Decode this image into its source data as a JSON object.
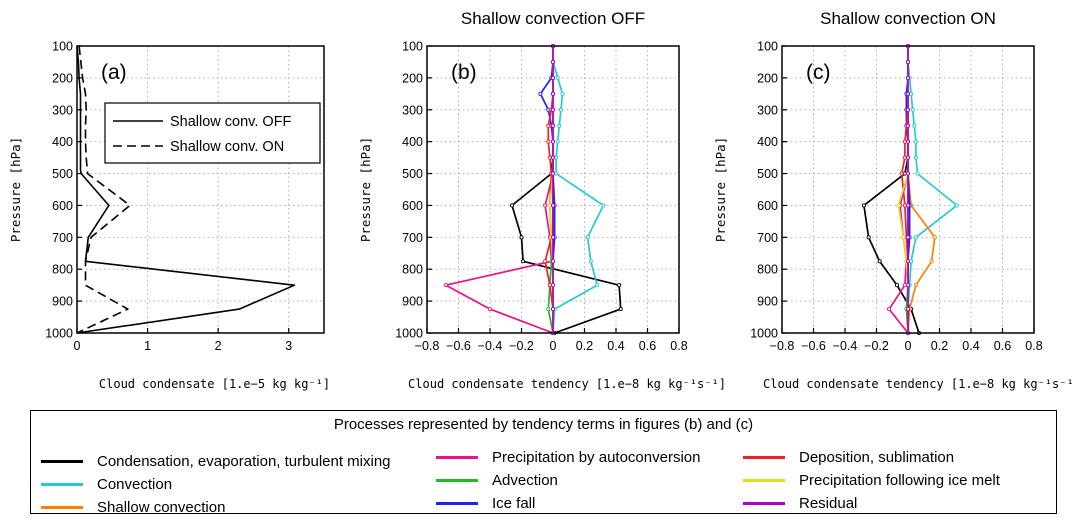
{
  "chart_data": [
    {
      "type": "line",
      "panel_label": "(a)",
      "title": "",
      "xlabel": "Cloud condensate [1.e−5 kg kg⁻¹]",
      "ylabel": "Pressure [hPa]",
      "xlim": [
        0,
        3.5
      ],
      "ylim": [
        1000,
        100
      ],
      "xticks": [
        "0",
        "1",
        "2",
        "3"
      ],
      "yticks": [
        "100",
        "200",
        "300",
        "400",
        "500",
        "600",
        "700",
        "800",
        "900",
        "1000"
      ],
      "grid": true,
      "legend_position": "top-right",
      "series": [
        {
          "name": "Shallow conv. OFF",
          "style": "solid",
          "color": "#000000",
          "x": [
            0,
            0.02,
            0.03,
            0.05,
            0.05,
            0.05,
            0.05,
            0.05,
            0.05,
            0.06,
            0.45,
            0.16,
            0.12,
            3.08,
            2.3,
            0
          ],
          "y": [
            100,
            150,
            200,
            250,
            300,
            350,
            400,
            450,
            490,
            500,
            600,
            700,
            775,
            850,
            925,
            1000
          ]
        },
        {
          "name": "Shallow conv. ON",
          "style": "dashed",
          "color": "#000000",
          "x": [
            0.03,
            0.08,
            0.12,
            0.13,
            0.12,
            0.12,
            0.13,
            0.15,
            0.75,
            0.2,
            0.12,
            0.12,
            0.72,
            0
          ],
          "y": [
            100,
            200,
            250,
            300,
            350,
            400,
            450,
            500,
            600,
            700,
            775,
            850,
            925,
            1000
          ]
        }
      ]
    },
    {
      "type": "line",
      "panel_label": "(b)",
      "title": "Shallow convection OFF",
      "xlabel": "Cloud condensate tendency [1.e−8 kg kg⁻¹s⁻¹]",
      "ylabel": "Pressure [hPa]",
      "xlim": [
        -0.8,
        0.8
      ],
      "ylim": [
        1000,
        100
      ],
      "xticks": [
        "−0.8",
        "−0.6",
        "−0.4",
        "−0.2",
        "0",
        "0.2",
        "0.4",
        "0.6",
        "0.8"
      ],
      "yticks": [
        "100",
        "200",
        "300",
        "400",
        "500",
        "600",
        "700",
        "800",
        "900",
        "1000"
      ],
      "grid": true,
      "y_levels": [
        100,
        150,
        200,
        250,
        300,
        350,
        400,
        450,
        500,
        600,
        700,
        775,
        850,
        925,
        1000
      ],
      "series": [
        {
          "color": "#000000",
          "x": [
            0,
            0,
            0,
            0,
            0,
            0,
            0,
            0,
            -0.01,
            -0.26,
            -0.2,
            -0.19,
            0.42,
            0.43,
            0.01
          ]
        },
        {
          "color": "#22cccc",
          "x": [
            0,
            0,
            0.03,
            0.06,
            0.05,
            0.04,
            0.03,
            0.02,
            0.02,
            0.32,
            0.22,
            0.24,
            0.28,
            0.01,
            0
          ]
        },
        {
          "color": "#ff8000",
          "x": [
            0,
            0,
            0,
            0,
            0,
            0,
            0,
            0,
            0,
            0,
            0,
            0,
            0,
            0,
            0
          ]
        },
        {
          "color": "#ee1188",
          "x": [
            0,
            0,
            0,
            0,
            0,
            0,
            0,
            0,
            0,
            -0.05,
            -0.02,
            -0.01,
            -0.68,
            -0.4,
            0
          ]
        },
        {
          "color": "#22bb22",
          "x": [
            0,
            0,
            0,
            0,
            0,
            0,
            0,
            0,
            0,
            0,
            0,
            -0.01,
            -0.02,
            -0.03,
            0
          ]
        },
        {
          "color": "#2222ee",
          "x": [
            0,
            0,
            -0.01,
            -0.08,
            -0.03,
            -0.01,
            0,
            0,
            0,
            0.01,
            0.01,
            0,
            0,
            0,
            0
          ]
        },
        {
          "color": "#ee2222",
          "x": [
            0,
            0,
            0,
            0,
            -0.01,
            -0.03,
            -0.03,
            -0.02,
            -0.01,
            -0.02,
            -0.01,
            -0.05,
            -0.02,
            0,
            0
          ]
        },
        {
          "color": "#dddd22",
          "x": [
            0,
            0,
            0,
            0,
            0,
            0,
            0,
            0,
            0,
            -0.02,
            -0.01,
            0,
            0,
            0,
            0
          ]
        },
        {
          "color": "#aa00cc",
          "x": [
            0,
            0,
            0,
            0,
            0,
            0,
            0,
            0,
            0,
            0,
            0,
            0,
            0,
            0,
            0
          ]
        }
      ]
    },
    {
      "type": "line",
      "panel_label": "(c)",
      "title": "Shallow convection ON",
      "xlabel": "Cloud condensate tendency [1.e−8 kg kg⁻¹s⁻¹]",
      "ylabel": "Pressure [hPa]",
      "xlim": [
        -0.8,
        0.8
      ],
      "ylim": [
        1000,
        100
      ],
      "xticks": [
        "−0.8",
        "−0.6",
        "−0.4",
        "−0.2",
        "0",
        "0.2",
        "0.4",
        "0.6",
        "0.8"
      ],
      "yticks": [
        "100",
        "200",
        "300",
        "400",
        "500",
        "600",
        "700",
        "800",
        "900",
        "1000"
      ],
      "grid": true,
      "y_levels": [
        100,
        150,
        200,
        250,
        300,
        350,
        400,
        450,
        500,
        600,
        700,
        775,
        850,
        925,
        1000
      ],
      "series": [
        {
          "color": "#000000",
          "x": [
            0,
            0,
            0,
            0,
            0,
            0,
            0,
            0,
            -0.02,
            -0.28,
            -0.25,
            -0.18,
            -0.07,
            0.02,
            0.07
          ]
        },
        {
          "color": "#22cccc",
          "x": [
            0,
            0,
            0.01,
            0.02,
            0.03,
            0.04,
            0.05,
            0.05,
            0.06,
            0.31,
            0.05,
            0.02,
            0.01,
            0,
            0
          ]
        },
        {
          "color": "#ff8000",
          "x": [
            0,
            0,
            0,
            0,
            0,
            0,
            0,
            0,
            0,
            0.02,
            0.17,
            0.15,
            0.05,
            0.01,
            0
          ]
        },
        {
          "color": "#ee1188",
          "x": [
            0,
            0,
            0,
            0,
            0,
            0,
            0,
            0,
            0,
            -0.05,
            -0.03,
            -0.01,
            -0.02,
            -0.12,
            0
          ]
        },
        {
          "color": "#22bb22",
          "x": [
            0,
            0,
            0,
            0,
            0,
            0,
            0,
            0,
            0,
            0,
            0,
            0,
            0,
            -0.01,
            0
          ]
        },
        {
          "color": "#2222ee",
          "x": [
            0,
            0,
            0,
            -0.01,
            -0.01,
            -0.01,
            0,
            0,
            0,
            0.01,
            0.01,
            0,
            0,
            0,
            0
          ]
        },
        {
          "color": "#ee2222",
          "x": [
            0,
            0,
            0,
            0,
            0,
            -0.01,
            -0.02,
            -0.02,
            -0.04,
            -0.02,
            -0.01,
            0,
            0,
            0,
            0
          ]
        },
        {
          "color": "#dddd22",
          "x": [
            0,
            0,
            0,
            0,
            0,
            0,
            0,
            0,
            0,
            -0.06,
            -0.03,
            -0.01,
            0,
            0,
            0
          ]
        },
        {
          "color": "#aa00cc",
          "x": [
            0,
            0,
            0,
            0,
            0,
            0,
            0,
            0,
            0,
            0,
            0,
            0,
            0,
            0,
            0
          ]
        }
      ]
    }
  ],
  "legend": {
    "title": "Processes represented by tendency terms in figures (b) and (c)",
    "items": [
      {
        "label": "Condensation, evaporation, turbulent mixing",
        "color": "#000000"
      },
      {
        "label": "Convection",
        "color": "#22cccc"
      },
      {
        "label": "Shallow convection",
        "color": "#ff8000"
      },
      {
        "label": "Precipitation by autoconversion",
        "color": "#ee1188"
      },
      {
        "label": "Advection",
        "color": "#22bb22"
      },
      {
        "label": "Ice fall",
        "color": "#2222ee"
      },
      {
        "label": "Deposition, sublimation",
        "color": "#ee2222"
      },
      {
        "label": "Precipitation following ice melt",
        "color": "#dddd22"
      },
      {
        "label": "Residual",
        "color": "#aa00cc"
      }
    ]
  }
}
